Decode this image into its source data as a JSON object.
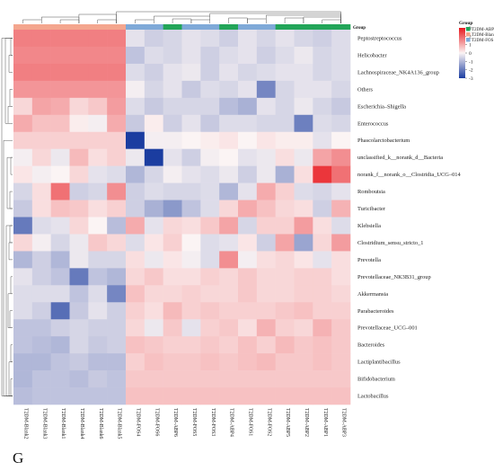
{
  "panel_label": "G",
  "chart_data": {
    "type": "heatmap",
    "title": "",
    "color_scale": {
      "min": -3,
      "max": 3,
      "low_color": "#1b3da0",
      "mid_color": "#fbf4f4",
      "high_color": "#e8191f",
      "ticks": [
        "3",
        "2",
        "1",
        "0",
        "-1",
        "-2",
        "-3"
      ]
    },
    "group_legend": {
      "title": "Group",
      "entries": [
        {
          "name": "T2DM-ABP",
          "color": "#22a559"
        },
        {
          "name": "T2DM-Blank",
          "color": "#f4a68e"
        },
        {
          "name": "T2DM-FOS",
          "color": "#7fa9d8"
        }
      ]
    },
    "group_row_label": "Group",
    "columns": [
      "T2DM-Blank2",
      "T2DM-Blank3",
      "T2DM-Blank1",
      "T2DM-Blank4",
      "T2DM-Blank6",
      "T2DM-Blank5",
      "T2DM-FOS4",
      "T2DM-FOS6",
      "T2DM-ABP6",
      "T2DM-FOS5",
      "T2DM-FOS3",
      "T2DM-ABP4",
      "T2DM-FOS1",
      "T2DM-FOS2",
      "T2DM-ABP5",
      "T2DM-ABP2",
      "T2DM-ABP1",
      "T2DM-ABP3"
    ],
    "column_groups": [
      "T2DM-Blank",
      "T2DM-Blank",
      "T2DM-Blank",
      "T2DM-Blank",
      "T2DM-Blank",
      "T2DM-Blank",
      "T2DM-FOS",
      "T2DM-FOS",
      "T2DM-ABP",
      "T2DM-FOS",
      "T2DM-FOS",
      "T2DM-ABP",
      "T2DM-FOS",
      "T2DM-FOS",
      "T2DM-ABP",
      "T2DM-ABP",
      "T2DM-ABP",
      "T2DM-ABP"
    ],
    "rows": [
      "Peptostreptococcus",
      "Helicobacter",
      "Lachnospiraceae_NK4A136_group",
      "Others",
      "Escherichia–Shigella",
      "Enterococcus",
      "Phascolarctobacterium",
      "unclassified_k__norank_d__Bacteria",
      "norank_f__norank_o__Clostridia_UCG–014",
      "Romboutsia",
      "Turicibacter",
      "Klebsiella",
      "Clostridium_sensu_stricto_1",
      "Prevotella",
      "Prevotellaceae_NK3B31_group",
      "Akkermansia",
      "Parabacteroides",
      "Prevotellaceae_UCG–001",
      "Bacteroides",
      "Lactiplantibacillus",
      "Bifidobacterium",
      "Lactobacillus"
    ],
    "values": [
      [
        1.6,
        1.6,
        1.6,
        1.6,
        1.6,
        1.6,
        -0.3,
        -0.6,
        -0.5,
        -0.3,
        -0.4,
        -0.6,
        -0.3,
        -0.5,
        -0.3,
        -0.5,
        -0.6,
        -0.4
      ],
      [
        1.5,
        1.5,
        1.5,
        1.5,
        1.5,
        1.5,
        -0.8,
        -0.4,
        -0.5,
        -0.3,
        -0.6,
        -0.4,
        -0.3,
        -0.6,
        -0.4,
        -0.2,
        -0.5,
        -0.4
      ],
      [
        1.6,
        1.6,
        1.6,
        1.6,
        1.6,
        1.6,
        -0.4,
        -0.6,
        -0.3,
        -0.2,
        -0.6,
        -0.3,
        -0.5,
        -0.4,
        -0.3,
        -0.3,
        -0.5,
        -0.4
      ],
      [
        1.3,
        1.3,
        1.3,
        1.3,
        1.3,
        1.3,
        -0.1,
        -0.5,
        -0.3,
        -0.7,
        -0.4,
        -0.5,
        -0.3,
        -1.8,
        -0.5,
        -0.3,
        -0.3,
        -0.5
      ],
      [
        0.4,
        1.1,
        1.0,
        0.4,
        0.6,
        1.2,
        -0.4,
        -0.7,
        -0.5,
        -0.5,
        -0.5,
        -0.9,
        -1.1,
        -0.3,
        -0.5,
        -0.2,
        -0.5,
        -0.7
      ],
      [
        1.0,
        0.7,
        0.7,
        0.1,
        -0.1,
        1.0,
        -0.7,
        0.1,
        -0.6,
        -0.3,
        -0.7,
        -0.4,
        -0.4,
        -0.5,
        -0.5,
        -1.9,
        -0.4,
        -0.5
      ],
      [
        0.5,
        0.5,
        0.5,
        0.5,
        0.5,
        0.5,
        -3.0,
        -0.1,
        -0.1,
        0.0,
        0.1,
        0.2,
        0.0,
        0.2,
        0.1,
        0.1,
        -0.3,
        0.0
      ],
      [
        -0.1,
        0.4,
        -0.2,
        0.8,
        0.3,
        0.5,
        -0.2,
        -3.0,
        -0.3,
        -0.6,
        -0.1,
        0.0,
        -0.3,
        -0.2,
        0.3,
        -0.2,
        1.1,
        1.4
      ],
      [
        0.2,
        -0.1,
        0.0,
        0.4,
        -0.3,
        -0.4,
        -1.0,
        -0.5,
        -0.1,
        -0.3,
        -0.4,
        -0.2,
        -0.6,
        -0.2,
        -1.1,
        0.3,
        2.6,
        1.8
      ],
      [
        -0.5,
        0.3,
        1.8,
        -0.6,
        -0.5,
        1.4,
        -0.6,
        -0.4,
        -0.5,
        -0.5,
        -0.4,
        -1.0,
        -0.3,
        1.0,
        0.5,
        -0.4,
        -0.5,
        -0.3
      ],
      [
        -0.7,
        0.3,
        0.7,
        0.6,
        0.3,
        0.5,
        -0.6,
        -1.1,
        -1.5,
        -0.8,
        -0.4,
        0.4,
        1.0,
        0.7,
        0.4,
        0.3,
        -0.6,
        0.9
      ],
      [
        -2.0,
        -0.4,
        -0.3,
        0.4,
        0.0,
        -0.9,
        1.0,
        -0.3,
        0.4,
        0.3,
        0.6,
        1.1,
        -0.5,
        0.5,
        0.5,
        1.2,
        0.3,
        -0.4
      ],
      [
        0.4,
        -0.1,
        -0.5,
        -0.2,
        0.6,
        0.4,
        -0.4,
        0.2,
        0.5,
        0.0,
        -0.4,
        -0.3,
        0.2,
        -0.6,
        1.1,
        -1.3,
        0.4,
        1.2
      ],
      [
        -1.0,
        -0.6,
        -1.0,
        -0.2,
        -0.5,
        -0.5,
        0.3,
        -0.2,
        0.2,
        -0.1,
        -0.4,
        1.4,
        -0.1,
        0.3,
        0.4,
        0.2,
        -0.3,
        0.3
      ],
      [
        -0.3,
        -0.6,
        -0.8,
        -2.0,
        -0.8,
        -1.0,
        0.4,
        0.6,
        0.3,
        0.3,
        0.5,
        0.4,
        0.6,
        0.4,
        0.4,
        0.5,
        0.5,
        0.3
      ],
      [
        -0.4,
        -0.4,
        -0.4,
        -0.8,
        -0.4,
        -1.8,
        0.7,
        0.4,
        0.4,
        0.5,
        0.4,
        0.4,
        0.6,
        0.4,
        0.4,
        0.5,
        0.5,
        0.4
      ],
      [
        -0.4,
        -0.6,
        -2.2,
        -0.7,
        -0.3,
        -0.6,
        0.5,
        0.3,
        0.8,
        0.5,
        0.6,
        0.5,
        0.5,
        0.5,
        0.6,
        0.7,
        0.5,
        0.5
      ],
      [
        -0.8,
        -0.8,
        -0.6,
        -0.5,
        -0.6,
        -0.6,
        0.4,
        -0.2,
        0.6,
        -0.3,
        0.5,
        0.6,
        0.3,
        0.9,
        0.5,
        0.4,
        0.9,
        0.6
      ],
      [
        -0.8,
        -0.9,
        -1.0,
        -0.5,
        -0.7,
        -0.6,
        0.7,
        0.6,
        0.5,
        0.5,
        0.6,
        0.5,
        0.7,
        0.5,
        0.8,
        0.6,
        0.7,
        0.6
      ],
      [
        -1.0,
        -1.0,
        -0.8,
        -0.7,
        -0.9,
        -0.9,
        0.5,
        0.7,
        0.6,
        0.6,
        0.7,
        0.6,
        0.7,
        0.8,
        0.6,
        0.6,
        0.7,
        0.6
      ],
      [
        -1.0,
        -0.8,
        -0.8,
        -0.9,
        -0.7,
        -0.8,
        0.6,
        0.6,
        0.6,
        0.6,
        0.6,
        0.6,
        0.6,
        0.6,
        0.6,
        0.6,
        0.6,
        0.6
      ],
      [
        -0.9,
        -0.8,
        -0.8,
        -0.8,
        -0.8,
        -0.8,
        0.7,
        0.7,
        0.7,
        0.7,
        0.7,
        0.7,
        0.7,
        0.7,
        0.7,
        0.7,
        0.7,
        0.7
      ]
    ]
  }
}
